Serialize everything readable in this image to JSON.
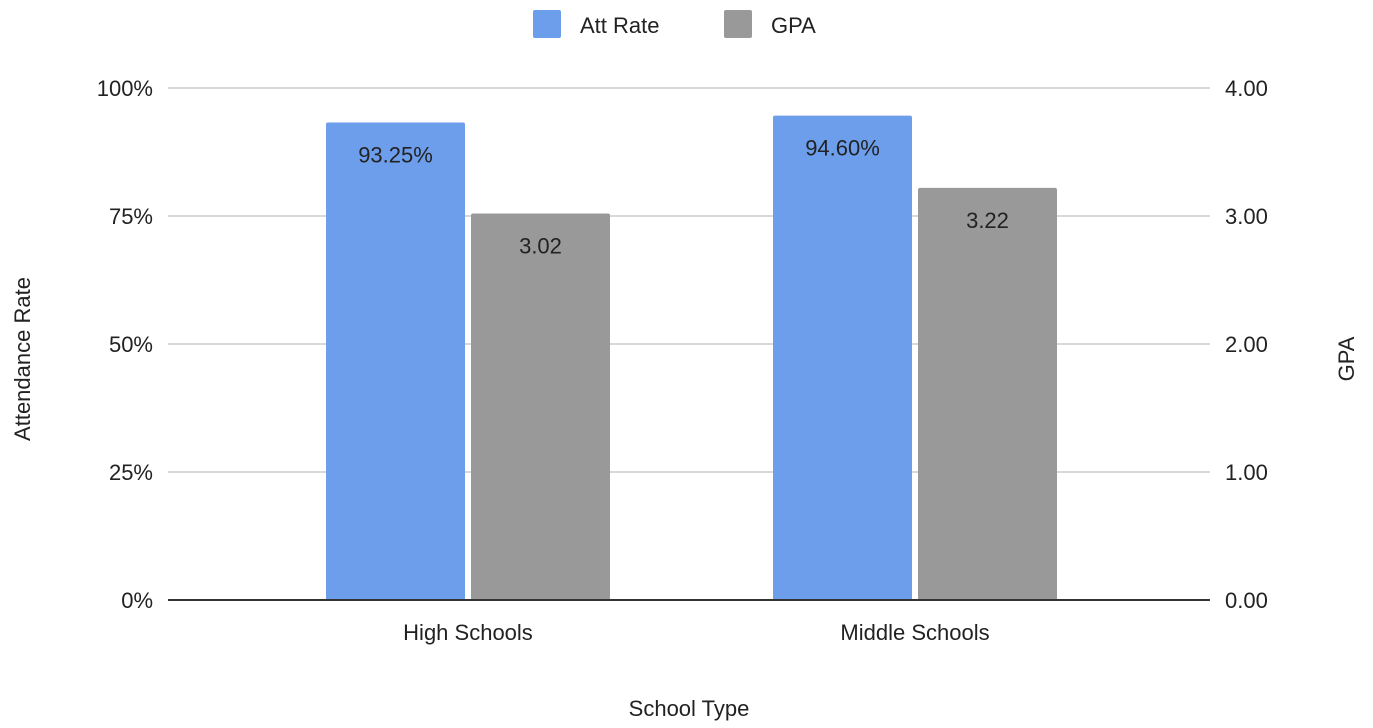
{
  "chart_data": {
    "type": "bar",
    "title": "",
    "categories": [
      "High Schools",
      "Middle Schools"
    ],
    "series": [
      {
        "name": "Att Rate",
        "axis": "left",
        "color": "#6d9eeb",
        "values": [
          93.25,
          94.6
        ],
        "labels": [
          "93.25%",
          "94.60%"
        ]
      },
      {
        "name": "GPA",
        "axis": "right",
        "color": "#999999",
        "values": [
          3.02,
          3.22
        ],
        "labels": [
          "3.02",
          "3.22"
        ]
      }
    ],
    "xlabel": "School Type",
    "ylabel": "Attendance Rate",
    "ylabel_right": "GPA",
    "ylim": [
      0,
      100
    ],
    "ylim_right": [
      0,
      4
    ],
    "yticks": [
      "0%",
      "25%",
      "50%",
      "75%",
      "100%"
    ],
    "yticks_right": [
      "0.00",
      "1.00",
      "2.00",
      "3.00",
      "4.00"
    ],
    "grid": true,
    "legend_position": "top-center"
  }
}
